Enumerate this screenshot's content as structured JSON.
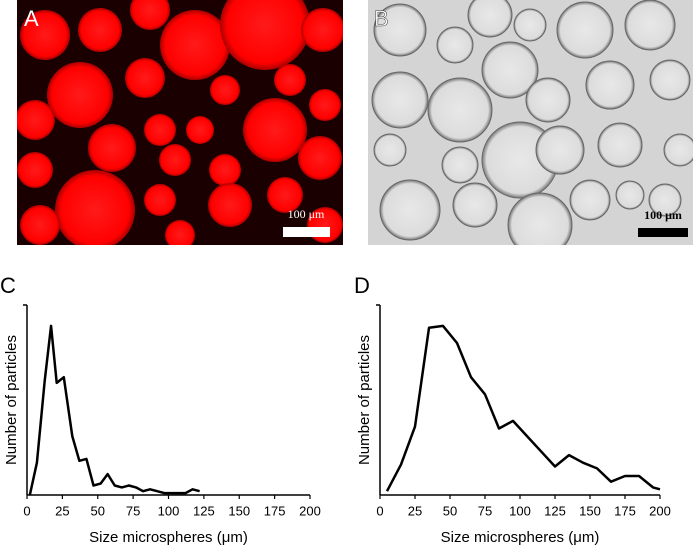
{
  "images": [
    {
      "label": "A",
      "scale_bar": "100 μm"
    },
    {
      "label": "B",
      "scale_bar": "100 μm"
    }
  ],
  "chart_data": [
    {
      "type": "line",
      "label": "C",
      "x_label": "Size microspheres (μm)",
      "y_label": "Number of particles",
      "x": [
        2,
        7,
        12.5,
        17,
        21,
        26,
        32,
        37,
        42,
        47,
        52,
        57,
        62,
        67,
        72,
        77,
        82,
        87,
        92,
        97,
        102,
        107,
        112,
        117,
        122
      ],
      "values": [
        0,
        17,
        60,
        89,
        59,
        62,
        31,
        18,
        19,
        5,
        6,
        11,
        5,
        4,
        5,
        4,
        2,
        3,
        2,
        1,
        1,
        1,
        1,
        3,
        2
      ],
      "color": "#000000",
      "xlim": [
        0,
        200
      ],
      "xticks": [
        0,
        25,
        50,
        75,
        100,
        125,
        150,
        175,
        200
      ],
      "ylim": [
        0,
        100
      ]
    },
    {
      "type": "line",
      "label": "D",
      "x_label": "Size microspheres (μm)",
      "y_label": "Number of particles",
      "x": [
        5,
        15,
        25,
        35,
        45,
        55,
        65,
        75,
        85,
        95,
        105,
        115,
        125,
        135,
        145,
        155,
        165,
        175,
        185,
        195,
        200
      ],
      "values": [
        2,
        16,
        36,
        88,
        89,
        80,
        62,
        53,
        35,
        39,
        31,
        23,
        15,
        21,
        17,
        14,
        7,
        10,
        10,
        4,
        3
      ],
      "color": "#000000",
      "xlim": [
        0,
        200
      ],
      "xticks": [
        0,
        25,
        50,
        75,
        100,
        125,
        150,
        175,
        200
      ],
      "ylim": [
        0,
        100
      ]
    }
  ]
}
